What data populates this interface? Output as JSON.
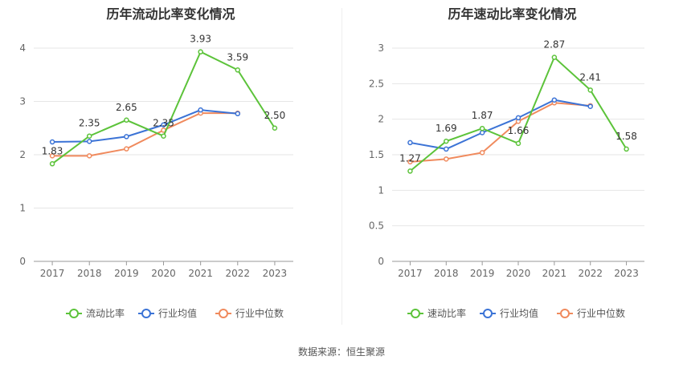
{
  "footer": {
    "source": "数据来源：恒生聚源"
  },
  "colors": {
    "main": "#5cc33a",
    "avg": "#3b73d6",
    "median": "#f08a5d",
    "grid": "#e6e6e6",
    "axis": "#666666"
  },
  "chart_data": [
    {
      "type": "line",
      "title": "历年流动比率变化情况",
      "categories": [
        "2017",
        "2018",
        "2019",
        "2020",
        "2021",
        "2022",
        "2023"
      ],
      "ylim": [
        0,
        4
      ],
      "yticks": [
        "0",
        "1",
        "2",
        "3",
        "4"
      ],
      "grid": true,
      "legend_position": "bottom",
      "series": [
        {
          "name": "流动比率",
          "color": "#5cc33a",
          "values": [
            1.83,
            2.35,
            2.65,
            2.35,
            3.93,
            3.59,
            2.5
          ],
          "labels": [
            "1.83",
            "2.35",
            "2.65",
            "2.35",
            "3.93",
            "3.59",
            "2.50"
          ]
        },
        {
          "name": "行业均值",
          "color": "#3b73d6",
          "values": [
            2.24,
            2.25,
            2.34,
            2.56,
            2.84,
            2.77,
            null
          ]
        },
        {
          "name": "行业中位数",
          "color": "#f08a5d",
          "values": [
            1.98,
            1.98,
            2.11,
            2.46,
            2.78,
            2.78,
            null
          ]
        }
      ]
    },
    {
      "type": "line",
      "title": "历年速动比率变化情况",
      "categories": [
        "2017",
        "2018",
        "2019",
        "2020",
        "2021",
        "2022",
        "2023"
      ],
      "ylim": [
        0,
        3
      ],
      "yticks": [
        "0",
        "0.5",
        "1",
        "1.5",
        "2",
        "2.5",
        "3"
      ],
      "grid": true,
      "legend_position": "bottom",
      "series": [
        {
          "name": "速动比率",
          "color": "#5cc33a",
          "values": [
            1.27,
            1.69,
            1.87,
            1.66,
            2.87,
            2.41,
            1.58
          ],
          "labels": [
            "1.27",
            "1.69",
            "1.87",
            "1.66",
            "2.87",
            "2.41",
            "1.58"
          ]
        },
        {
          "name": "行业均值",
          "color": "#3b73d6",
          "values": [
            1.67,
            1.58,
            1.81,
            2.02,
            2.27,
            2.18,
            null
          ]
        },
        {
          "name": "行业中位数",
          "color": "#f08a5d",
          "values": [
            1.4,
            1.44,
            1.53,
            1.97,
            2.23,
            2.19,
            null
          ]
        }
      ]
    }
  ]
}
